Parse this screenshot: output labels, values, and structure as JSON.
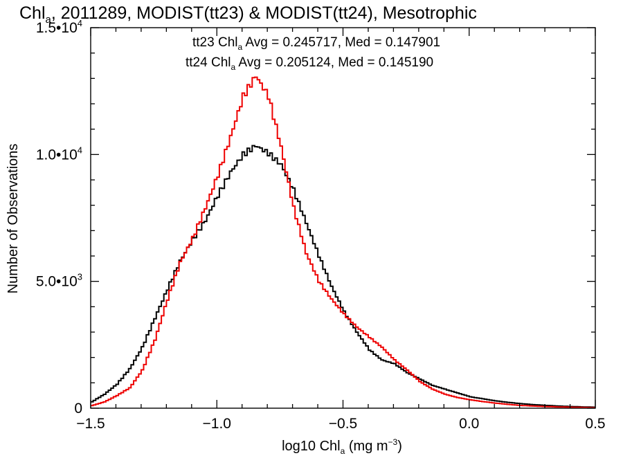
{
  "chart_data": {
    "type": "line",
    "title": {
      "prefix": "Chl",
      "sub": "a",
      "rest": ", 2011289, MODIST(tt23) & MODIST(tt24), Mesotrophic"
    },
    "xlabel": {
      "prefix": "log10 Chl",
      "sub": "a",
      "units_pre": " (mg m",
      "units_sup": "−3",
      "units_post": ")"
    },
    "ylabel": "Number of Observations",
    "xlim": [
      -1.5,
      0.5
    ],
    "ylim": [
      0,
      15000
    ],
    "x_ticks": [
      {
        "value": -1.5,
        "label": "−1.5"
      },
      {
        "value": -1.0,
        "label": "−1.0"
      },
      {
        "value": -0.5,
        "label": "−0.5"
      },
      {
        "value": 0.0,
        "label": "0.0"
      },
      {
        "value": 0.5,
        "label": "0.5"
      }
    ],
    "y_ticks": [
      {
        "value": 0,
        "mantissa": "0",
        "exp": ""
      },
      {
        "value": 5000,
        "mantissa": "5.0•10",
        "exp": "3"
      },
      {
        "value": 10000,
        "mantissa": "1.0•10",
        "exp": "4"
      },
      {
        "value": 15000,
        "mantissa": "1.5•10",
        "exp": "4"
      }
    ],
    "stats": [
      {
        "series": "tt23",
        "prefix": "tt23 Chl",
        "sub": "a",
        "rest": " Avg = 0.245717, Med = 0.147901",
        "color": "#000000"
      },
      {
        "series": "tt24",
        "prefix": "tt24 Chl",
        "sub": "a",
        "rest": " Avg = 0.205124, Med = 0.145190",
        "color": "#ee0000"
      }
    ],
    "series": [
      {
        "name": "tt23",
        "color": "#000000",
        "points": [
          [
            -1.5,
            250
          ],
          [
            -1.45,
            550
          ],
          [
            -1.4,
            950
          ],
          [
            -1.35,
            1550
          ],
          [
            -1.3,
            2400
          ],
          [
            -1.25,
            3550
          ],
          [
            -1.2,
            4700
          ],
          [
            -1.15,
            5800
          ],
          [
            -1.1,
            6650
          ],
          [
            -1.05,
            7400
          ],
          [
            -1.0,
            8400
          ],
          [
            -0.95,
            9300
          ],
          [
            -0.9,
            10000
          ],
          [
            -0.85,
            10350
          ],
          [
            -0.8,
            10050
          ],
          [
            -0.75,
            9600
          ],
          [
            -0.7,
            8600
          ],
          [
            -0.65,
            7300
          ],
          [
            -0.6,
            6000
          ],
          [
            -0.55,
            4800
          ],
          [
            -0.5,
            3800
          ],
          [
            -0.45,
            3000
          ],
          [
            -0.4,
            2300
          ],
          [
            -0.35,
            1900
          ],
          [
            -0.3,
            1750
          ],
          [
            -0.25,
            1400
          ],
          [
            -0.2,
            1150
          ],
          [
            -0.15,
            900
          ],
          [
            -0.1,
            750
          ],
          [
            -0.05,
            600
          ],
          [
            0.0,
            450
          ],
          [
            0.05,
            370
          ],
          [
            0.1,
            290
          ],
          [
            0.15,
            230
          ],
          [
            0.2,
            180
          ],
          [
            0.25,
            140
          ],
          [
            0.3,
            110
          ],
          [
            0.35,
            85
          ],
          [
            0.4,
            65
          ],
          [
            0.45,
            50
          ],
          [
            0.5,
            40
          ]
        ]
      },
      {
        "name": "tt24",
        "color": "#ee0000",
        "points": [
          [
            -1.5,
            100
          ],
          [
            -1.45,
            250
          ],
          [
            -1.4,
            500
          ],
          [
            -1.35,
            800
          ],
          [
            -1.3,
            1500
          ],
          [
            -1.25,
            2700
          ],
          [
            -1.2,
            4300
          ],
          [
            -1.15,
            5750
          ],
          [
            -1.1,
            6700
          ],
          [
            -1.05,
            7900
          ],
          [
            -1.0,
            9200
          ],
          [
            -0.95,
            10700
          ],
          [
            -0.9,
            12300
          ],
          [
            -0.85,
            13100
          ],
          [
            -0.8,
            12300
          ],
          [
            -0.75,
            10300
          ],
          [
            -0.7,
            7900
          ],
          [
            -0.65,
            6100
          ],
          [
            -0.6,
            5000
          ],
          [
            -0.55,
            4300
          ],
          [
            -0.5,
            3700
          ],
          [
            -0.45,
            3200
          ],
          [
            -0.4,
            2800
          ],
          [
            -0.35,
            2400
          ],
          [
            -0.3,
            1900
          ],
          [
            -0.25,
            1500
          ],
          [
            -0.2,
            1050
          ],
          [
            -0.15,
            750
          ],
          [
            -0.1,
            550
          ],
          [
            -0.05,
            420
          ],
          [
            0.0,
            330
          ],
          [
            0.05,
            260
          ],
          [
            0.1,
            200
          ],
          [
            0.15,
            150
          ],
          [
            0.2,
            110
          ],
          [
            0.25,
            85
          ],
          [
            0.3,
            65
          ],
          [
            0.35,
            50
          ],
          [
            0.4,
            38
          ],
          [
            0.45,
            28
          ],
          [
            0.5,
            20
          ]
        ]
      }
    ]
  }
}
